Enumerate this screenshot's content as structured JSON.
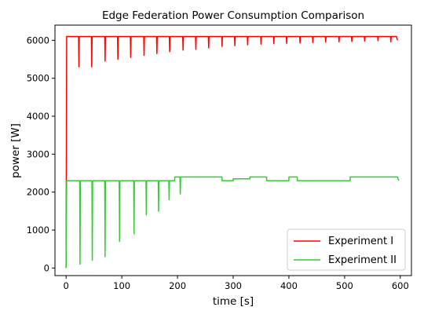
{
  "chart_data": {
    "type": "line",
    "title": "Edge Federation Power Consumption Comparison",
    "xlabel": "time [s]",
    "ylabel": "power [W]",
    "xlim": [
      -20,
      620
    ],
    "ylim": [
      -200,
      6400
    ],
    "xticks": [
      0,
      100,
      200,
      300,
      400,
      500,
      600
    ],
    "yticks": [
      0,
      1000,
      2000,
      3000,
      4000,
      5000,
      6000
    ],
    "grid": false,
    "legend_position": "lower-right",
    "series": [
      {
        "name": "Experiment I",
        "color": "#ff0000",
        "base": 6100,
        "start_value": 0,
        "dips": [
          [
            23,
            5300
          ],
          [
            46,
            5300
          ],
          [
            70,
            5450
          ],
          [
            93,
            5500
          ],
          [
            116,
            5550
          ],
          [
            140,
            5600
          ],
          [
            163,
            5650
          ],
          [
            186,
            5700
          ],
          [
            210,
            5740
          ],
          [
            233,
            5760
          ],
          [
            256,
            5800
          ],
          [
            280,
            5840
          ],
          [
            303,
            5860
          ],
          [
            326,
            5880
          ],
          [
            350,
            5900
          ],
          [
            373,
            5910
          ],
          [
            396,
            5920
          ],
          [
            420,
            5930
          ],
          [
            443,
            5940
          ],
          [
            466,
            5950
          ],
          [
            490,
            5960
          ],
          [
            513,
            5970
          ],
          [
            536,
            5980
          ],
          [
            560,
            5990
          ],
          [
            583,
            5960
          ]
        ],
        "x_end": 595,
        "end_value": 6000
      },
      {
        "name": "Experiment II",
        "color": "#33cc33",
        "start_value": 0,
        "segments": [
          [
            0,
            195,
            2300
          ],
          [
            195,
            280,
            2400
          ],
          [
            280,
            300,
            2300
          ],
          [
            300,
            330,
            2350
          ],
          [
            330,
            360,
            2400
          ],
          [
            360,
            400,
            2300
          ],
          [
            400,
            415,
            2400
          ],
          [
            415,
            510,
            2300
          ],
          [
            510,
            600,
            2400
          ]
        ],
        "dips": [
          [
            25,
            100
          ],
          [
            47,
            200
          ],
          [
            70,
            300
          ],
          [
            96,
            700
          ],
          [
            122,
            900
          ],
          [
            144,
            1400
          ],
          [
            166,
            1500
          ],
          [
            185,
            1800
          ],
          [
            205,
            1950
          ]
        ],
        "x_end": 597,
        "end_value": 2300
      }
    ]
  }
}
